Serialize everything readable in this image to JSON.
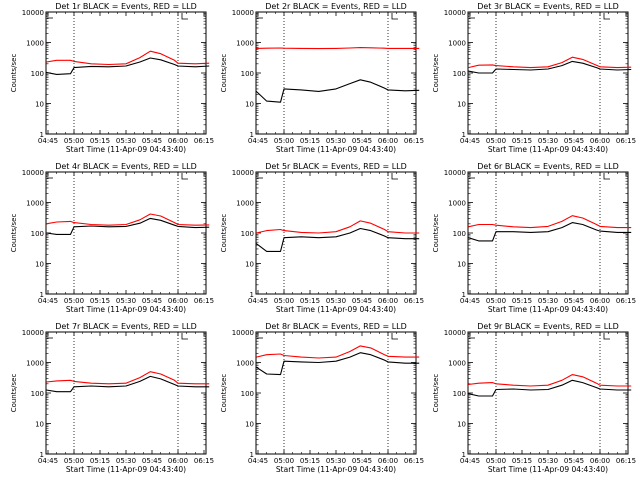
{
  "chart_data": [
    {
      "type": "line",
      "title": "Det 1r BLACK = Events, RED = LLD",
      "xlabel": "Start Time (11-Apr-09 04:43:40)",
      "ylabel": "Counts/sec",
      "xticks": [
        "04:45",
        "05:00",
        "05:15",
        "05:30",
        "05:45",
        "06:00",
        "06:15"
      ],
      "yticks": [
        "1",
        "10",
        "100",
        "1000",
        "10000"
      ],
      "ylim": [
        1,
        10000
      ],
      "yscale": "log",
      "x": [
        "04:44",
        "04:50",
        "04:58",
        "05:00",
        "05:10",
        "05:20",
        "05:30",
        "05:38",
        "05:44",
        "05:50",
        "05:58",
        "06:00",
        "06:10",
        "06:18"
      ],
      "series": [
        {
          "name": "BLACK = Events",
          "color": "#000000",
          "values": [
            105,
            90,
            95,
            150,
            165,
            160,
            170,
            230,
            310,
            270,
            190,
            170,
            160,
            170
          ]
        },
        {
          "name": "RED = LLD",
          "color": "#ff0000",
          "values": [
            230,
            260,
            260,
            240,
            200,
            190,
            200,
            320,
            520,
            430,
            260,
            210,
            200,
            210
          ]
        }
      ]
    },
    {
      "type": "line",
      "title": "Det 2r BLACK = Events, RED = LLD",
      "xlabel": "Start Time (11-Apr-09 04:43:40)",
      "ylabel": "Counts/sec",
      "xticks": [
        "04:45",
        "05:00",
        "05:15",
        "05:30",
        "05:45",
        "06:00",
        "06:15"
      ],
      "yticks": [
        "1",
        "10",
        "100",
        "1000",
        "10000"
      ],
      "ylim": [
        1,
        10000
      ],
      "yscale": "log",
      "x": [
        "04:44",
        "04:50",
        "04:58",
        "05:00",
        "05:10",
        "05:20",
        "05:30",
        "05:38",
        "05:44",
        "05:50",
        "05:58",
        "06:00",
        "06:10",
        "06:18"
      ],
      "series": [
        {
          "name": "BLACK = Events",
          "color": "#000000",
          "values": [
            25,
            12,
            11,
            30,
            28,
            25,
            30,
            45,
            60,
            50,
            32,
            28,
            26,
            27
          ]
        },
        {
          "name": "RED = LLD",
          "color": "#ff0000",
          "values": [
            640,
            650,
            660,
            650,
            640,
            630,
            640,
            660,
            680,
            670,
            650,
            640,
            640,
            640
          ]
        }
      ]
    },
    {
      "type": "line",
      "title": "Det 3r BLACK = Events, RED = LLD",
      "xlabel": "Start Time (11-Apr-09 04:43:40)",
      "ylabel": "Counts/sec",
      "xticks": [
        "04:45",
        "05:00",
        "05:15",
        "05:30",
        "05:45",
        "06:00",
        "06:15"
      ],
      "yticks": [
        "1",
        "10",
        "100",
        "1000",
        "10000"
      ],
      "ylim": [
        1,
        10000
      ],
      "yscale": "log",
      "x": [
        "04:44",
        "04:50",
        "04:58",
        "05:00",
        "05:10",
        "05:20",
        "05:30",
        "05:38",
        "05:44",
        "05:50",
        "05:58",
        "06:00",
        "06:10",
        "06:18"
      ],
      "series": [
        {
          "name": "BLACK = Events",
          "color": "#000000",
          "values": [
            115,
            100,
            100,
            135,
            130,
            125,
            135,
            175,
            240,
            210,
            150,
            135,
            125,
            130
          ]
        },
        {
          "name": "RED = LLD",
          "color": "#ff0000",
          "values": [
            150,
            180,
            185,
            175,
            160,
            150,
            160,
            220,
            330,
            280,
            180,
            160,
            150,
            155
          ]
        }
      ]
    },
    {
      "type": "line",
      "title": "Det 4r BLACK = Events, RED = LLD",
      "xlabel": "Start Time (11-Apr-09 04:43:40)",
      "ylabel": "Counts/sec",
      "xticks": [
        "04:45",
        "05:00",
        "05:15",
        "05:30",
        "05:45",
        "06:00",
        "06:15"
      ],
      "yticks": [
        "1",
        "10",
        "100",
        "1000",
        "10000"
      ],
      "ylim": [
        1,
        10000
      ],
      "yscale": "log",
      "x": [
        "04:44",
        "04:50",
        "04:58",
        "05:00",
        "05:10",
        "05:20",
        "05:30",
        "05:38",
        "05:44",
        "05:50",
        "05:58",
        "06:00",
        "06:10",
        "06:18"
      ],
      "series": [
        {
          "name": "BLACK = Events",
          "color": "#000000",
          "values": [
            100,
            90,
            90,
            160,
            170,
            160,
            165,
            210,
            300,
            260,
            180,
            165,
            150,
            155
          ]
        },
        {
          "name": "RED = LLD",
          "color": "#ff0000",
          "values": [
            200,
            230,
            240,
            220,
            190,
            180,
            190,
            270,
            420,
            360,
            220,
            190,
            180,
            185
          ]
        }
      ]
    },
    {
      "type": "line",
      "title": "Det 5r BLACK = Events, RED = LLD",
      "xlabel": "Start Time (11-Apr-09 04:43:40)",
      "ylabel": "Counts/sec",
      "xticks": [
        "04:45",
        "05:00",
        "05:15",
        "05:30",
        "05:45",
        "06:00",
        "06:15"
      ],
      "yticks": [
        "1",
        "10",
        "100",
        "1000",
        "10000"
      ],
      "ylim": [
        1,
        10000
      ],
      "yscale": "log",
      "x": [
        "04:44",
        "04:50",
        "04:58",
        "05:00",
        "05:10",
        "05:20",
        "05:30",
        "05:38",
        "05:44",
        "05:50",
        "05:58",
        "06:00",
        "06:10",
        "06:18"
      ],
      "series": [
        {
          "name": "BLACK = Events",
          "color": "#000000",
          "values": [
            45,
            25,
            25,
            70,
            75,
            70,
            75,
            100,
            140,
            120,
            80,
            70,
            65,
            65
          ]
        },
        {
          "name": "RED = LLD",
          "color": "#ff0000",
          "values": [
            100,
            120,
            130,
            120,
            105,
            100,
            110,
            160,
            250,
            210,
            130,
            110,
            100,
            100
          ]
        }
      ]
    },
    {
      "type": "line",
      "title": "Det 6r BLACK = Events, RED = LLD",
      "xlabel": "Start Time (11-Apr-09 04:43:40)",
      "ylabel": "Counts/sec",
      "xticks": [
        "04:45",
        "05:00",
        "05:15",
        "05:30",
        "05:45",
        "06:00",
        "06:15"
      ],
      "yticks": [
        "1",
        "10",
        "100",
        "1000",
        "10000"
      ],
      "ylim": [
        1,
        10000
      ],
      "yscale": "log",
      "x": [
        "04:44",
        "04:50",
        "04:58",
        "05:00",
        "05:10",
        "05:20",
        "05:30",
        "05:38",
        "05:44",
        "05:50",
        "05:58",
        "06:00",
        "06:10",
        "06:18"
      ],
      "series": [
        {
          "name": "BLACK = Events",
          "color": "#000000",
          "values": [
            70,
            55,
            55,
            110,
            110,
            105,
            110,
            150,
            220,
            190,
            125,
            115,
            105,
            105
          ]
        },
        {
          "name": "RED = LLD",
          "color": "#ff0000",
          "values": [
            160,
            190,
            190,
            180,
            160,
            150,
            165,
            240,
            370,
            310,
            190,
            165,
            150,
            150
          ]
        }
      ]
    },
    {
      "type": "line",
      "title": "Det 7r BLACK = Events, RED = LLD",
      "xlabel": "Start Time (11-Apr-09 04:43:40)",
      "ylabel": "Counts/sec",
      "xticks": [
        "04:45",
        "05:00",
        "05:15",
        "05:30",
        "05:45",
        "06:00",
        "06:15"
      ],
      "yticks": [
        "1",
        "10",
        "100",
        "1000",
        "10000"
      ],
      "ylim": [
        1,
        10000
      ],
      "yscale": "log",
      "x": [
        "04:44",
        "04:50",
        "04:58",
        "05:00",
        "05:10",
        "05:20",
        "05:30",
        "05:38",
        "05:44",
        "05:50",
        "05:58",
        "06:00",
        "06:10",
        "06:18"
      ],
      "series": [
        {
          "name": "BLACK = Events",
          "color": "#000000",
          "values": [
            125,
            110,
            110,
            160,
            170,
            160,
            170,
            240,
            350,
            290,
            190,
            170,
            160,
            160
          ]
        },
        {
          "name": "RED = LLD",
          "color": "#ff0000",
          "values": [
            230,
            250,
            260,
            240,
            210,
            200,
            210,
            320,
            500,
            420,
            260,
            210,
            200,
            200
          ]
        }
      ]
    },
    {
      "type": "line",
      "title": "Det 8r BLACK = Events, RED = LLD",
      "xlabel": "Start Time (11-Apr-09 04:43:40)",
      "ylabel": "Counts/sec",
      "xticks": [
        "04:45",
        "05:00",
        "05:15",
        "05:30",
        "05:45",
        "06:00",
        "06:15"
      ],
      "yticks": [
        "1",
        "10",
        "100",
        "1000",
        "10000"
      ],
      "ylim": [
        1,
        10000
      ],
      "yscale": "log",
      "x": [
        "04:44",
        "04:50",
        "04:58",
        "05:00",
        "05:10",
        "05:20",
        "05:30",
        "05:38",
        "05:44",
        "05:50",
        "05:58",
        "06:00",
        "06:10",
        "06:18"
      ],
      "series": [
        {
          "name": "BLACK = Events",
          "color": "#000000",
          "values": [
            700,
            420,
            400,
            1100,
            1050,
            1000,
            1100,
            1500,
            2100,
            1800,
            1200,
            1050,
            950,
            950
          ]
        },
        {
          "name": "RED = LLD",
          "color": "#ff0000",
          "values": [
            1500,
            1800,
            1900,
            1700,
            1500,
            1400,
            1500,
            2300,
            3500,
            3000,
            1800,
            1600,
            1500,
            1500
          ]
        }
      ]
    },
    {
      "type": "line",
      "title": "Det 9r BLACK = Events, RED = LLD",
      "xlabel": "Start Time (11-Apr-09 04:43:40)",
      "ylabel": "Counts/sec",
      "xticks": [
        "04:45",
        "05:00",
        "05:15",
        "05:30",
        "05:45",
        "06:00",
        "06:15"
      ],
      "yticks": [
        "1",
        "10",
        "100",
        "1000",
        "10000"
      ],
      "ylim": [
        1,
        10000
      ],
      "yscale": "log",
      "x": [
        "04:44",
        "04:50",
        "04:58",
        "05:00",
        "05:10",
        "05:20",
        "05:30",
        "05:38",
        "05:44",
        "05:50",
        "05:58",
        "06:00",
        "06:10",
        "06:18"
      ],
      "series": [
        {
          "name": "BLACK = Events",
          "color": "#000000",
          "values": [
            95,
            80,
            80,
            130,
            135,
            125,
            130,
            180,
            260,
            220,
            150,
            135,
            125,
            125
          ]
        },
        {
          "name": "RED = LLD",
          "color": "#ff0000",
          "values": [
            190,
            210,
            220,
            200,
            180,
            170,
            180,
            260,
            400,
            340,
            210,
            180,
            170,
            170
          ]
        }
      ]
    }
  ]
}
